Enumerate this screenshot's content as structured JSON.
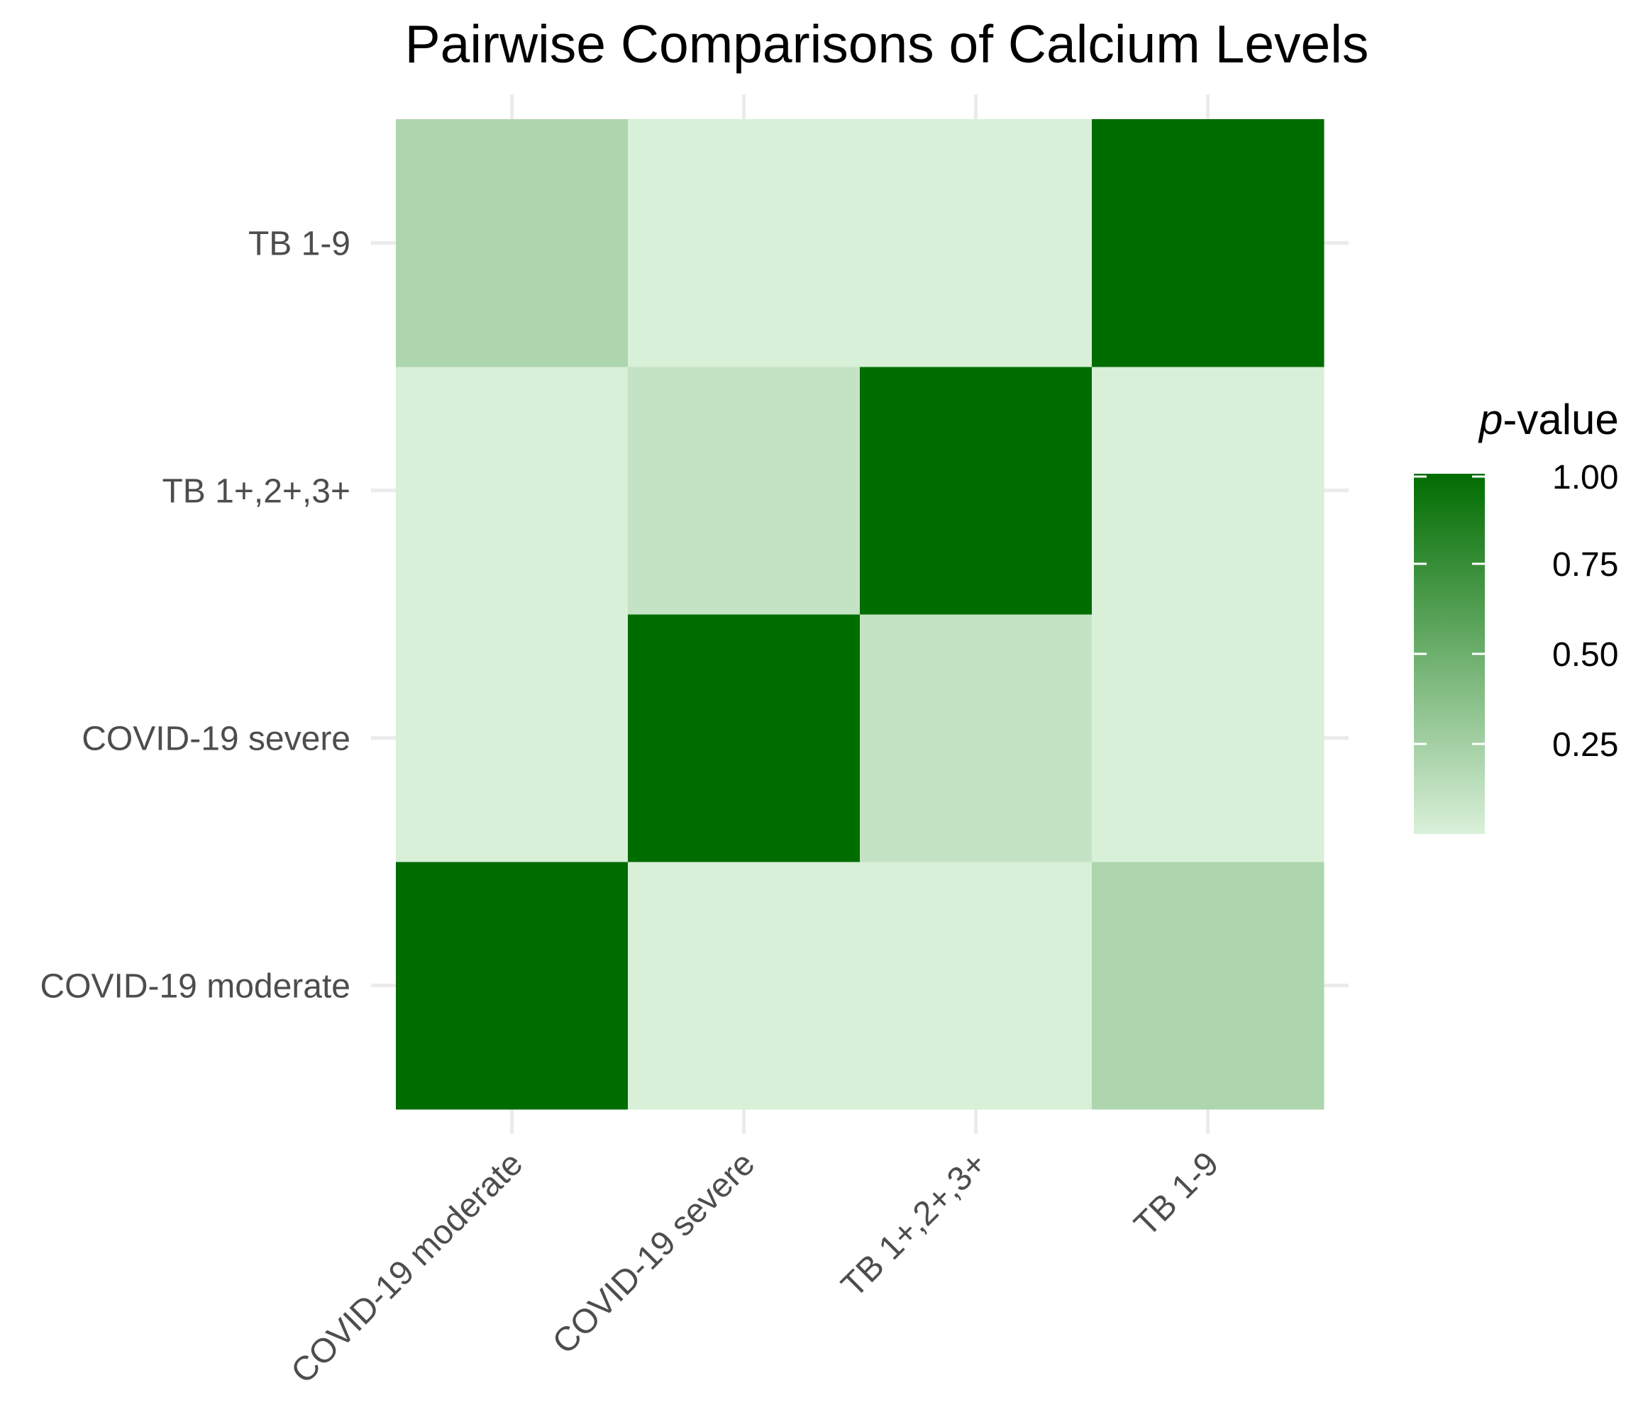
{
  "chart_data": {
    "type": "heatmap",
    "title": "Pairwise Comparisons of Calcium Levels",
    "xlabel": "",
    "ylabel": "",
    "x_categories": [
      "COVID-19 moderate",
      "COVID-19 severe",
      "TB 1+,2+,3+",
      "TB 1-9"
    ],
    "y_categories": [
      "COVID-19 moderate",
      "COVID-19 severe",
      "TB 1+,2+,3+",
      "TB 1-9"
    ],
    "values": [
      [
        1.0,
        0.01,
        0.01,
        0.2
      ],
      [
        0.01,
        1.0,
        0.1,
        0.01
      ],
      [
        0.01,
        0.1,
        1.0,
        0.01
      ],
      [
        0.2,
        0.01,
        0.01,
        1.0
      ]
    ],
    "legend": {
      "title_italic": "p",
      "title_rest": "-value",
      "breaks": [
        1.0,
        0.75,
        0.5,
        0.25
      ],
      "break_labels": [
        "1.00",
        "0.75",
        "0.50",
        "0.25"
      ],
      "range": [
        0.0,
        1.0
      ],
      "color_low": "#daf0da",
      "color_high": "#006d00",
      "placement": "right"
    },
    "grid": true
  }
}
